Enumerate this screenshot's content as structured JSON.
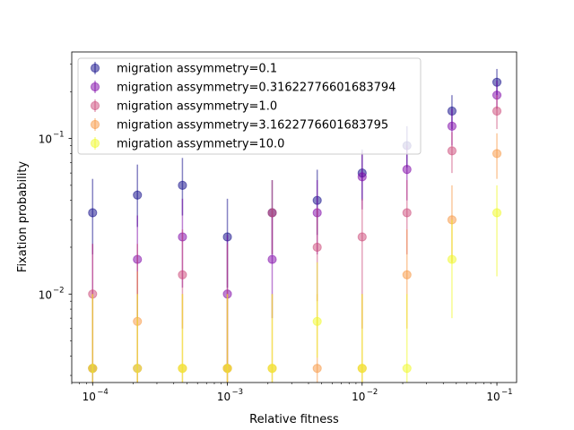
{
  "chart_data": {
    "type": "scatter",
    "title": "",
    "xlabel": "Relative fitness",
    "ylabel": "Fixation probability",
    "xscale": "log",
    "yscale": "log",
    "xlim": [
      7e-05,
      0.14
    ],
    "ylim": [
      0.0027,
      0.36
    ],
    "grid": false,
    "legend_position": "upper-left",
    "x": [
      0.0001,
      0.000215,
      0.000464,
      0.001,
      0.00215,
      0.00464,
      0.01,
      0.0215,
      0.0464,
      0.1
    ],
    "x_ticks": [
      {
        "value": 0.0001,
        "base": "10",
        "exp": "−4"
      },
      {
        "value": 0.001,
        "base": "10",
        "exp": "−3"
      },
      {
        "value": 0.01,
        "base": "10",
        "exp": "−2"
      },
      {
        "value": 0.1,
        "base": "10",
        "exp": "−1"
      }
    ],
    "y_ticks": [
      {
        "value": 0.01,
        "base": "10",
        "exp": "−2"
      },
      {
        "value": 0.1,
        "base": "10",
        "exp": "−1"
      }
    ],
    "series": [
      {
        "name": "migration assymmetry=0.1",
        "color": "#0d0887",
        "values": [
          0.0333,
          0.0433,
          0.05,
          0.0233,
          0.0333,
          0.04,
          0.06,
          0.09,
          0.15,
          0.23
        ],
        "lower": [
          0.018,
          0.027,
          0.032,
          0.011,
          0.018,
          0.024,
          0.04,
          0.065,
          0.115,
          0.19
        ],
        "upper": [
          0.055,
          0.068,
          0.075,
          0.041,
          0.054,
          0.063,
          0.085,
          0.12,
          0.19,
          0.28
        ]
      },
      {
        "name": "migration assymmetry=0.31622776601683794",
        "color": "#7e03a8",
        "values": [
          0.00333,
          0.0167,
          0.0233,
          0.01,
          0.0167,
          0.0333,
          0.0567,
          0.0633,
          0.12,
          0.19
        ],
        "lower": [
          0.0015,
          0.007,
          0.011,
          0.0035,
          0.007,
          0.018,
          0.035,
          0.04,
          0.09,
          0.155
        ],
        "upper": [
          0.021,
          0.032,
          0.041,
          0.024,
          0.032,
          0.054,
          0.082,
          0.09,
          0.155,
          0.235
        ]
      },
      {
        "name": "migration assymmetry=1.0",
        "color": "#cc4778",
        "values": [
          0.01,
          0.00333,
          0.0133,
          0.00333,
          0.0333,
          0.02,
          0.0233,
          0.0333,
          0.0833,
          0.15
        ],
        "lower": [
          0.0035,
          0.0015,
          0.006,
          0.0015,
          0.018,
          0.009,
          0.006,
          0.018,
          0.06,
          0.115
        ],
        "upper": [
          0.021,
          0.021,
          0.026,
          0.021,
          0.054,
          0.036,
          0.041,
          0.054,
          0.11,
          0.19
        ]
      },
      {
        "name": "migration assymmetry=3.1622776601683795",
        "color": "#f89540",
        "values": [
          0.00333,
          0.00667,
          0.00333,
          0.00333,
          0.00333,
          0.00333,
          0.00333,
          0.0133,
          0.03,
          0.08
        ],
        "lower": [
          0.0015,
          0.002,
          0.0015,
          0.0015,
          0.0015,
          0.0015,
          0.0015,
          0.006,
          0.016,
          0.055
        ],
        "upper": [
          0.01,
          0.014,
          0.01,
          0.01,
          0.01,
          0.01,
          0.01,
          0.026,
          0.05,
          0.108
        ]
      },
      {
        "name": "migration assymmetry=10.0",
        "color": "#f0f921",
        "values": [
          0.00333,
          0.00333,
          0.00333,
          0.00333,
          0.00333,
          0.00667,
          0.00333,
          0.00333,
          0.0167,
          0.0333
        ],
        "lower": [
          0.0015,
          0.0015,
          0.0015,
          0.0015,
          0.0015,
          0.0039,
          0.0015,
          0.0015,
          0.007,
          0.013
        ],
        "upper": [
          0.01,
          0.01,
          0.01,
          0.01,
          0.01,
          0.016,
          0.01,
          0.01,
          0.03,
          0.05
        ]
      }
    ]
  }
}
